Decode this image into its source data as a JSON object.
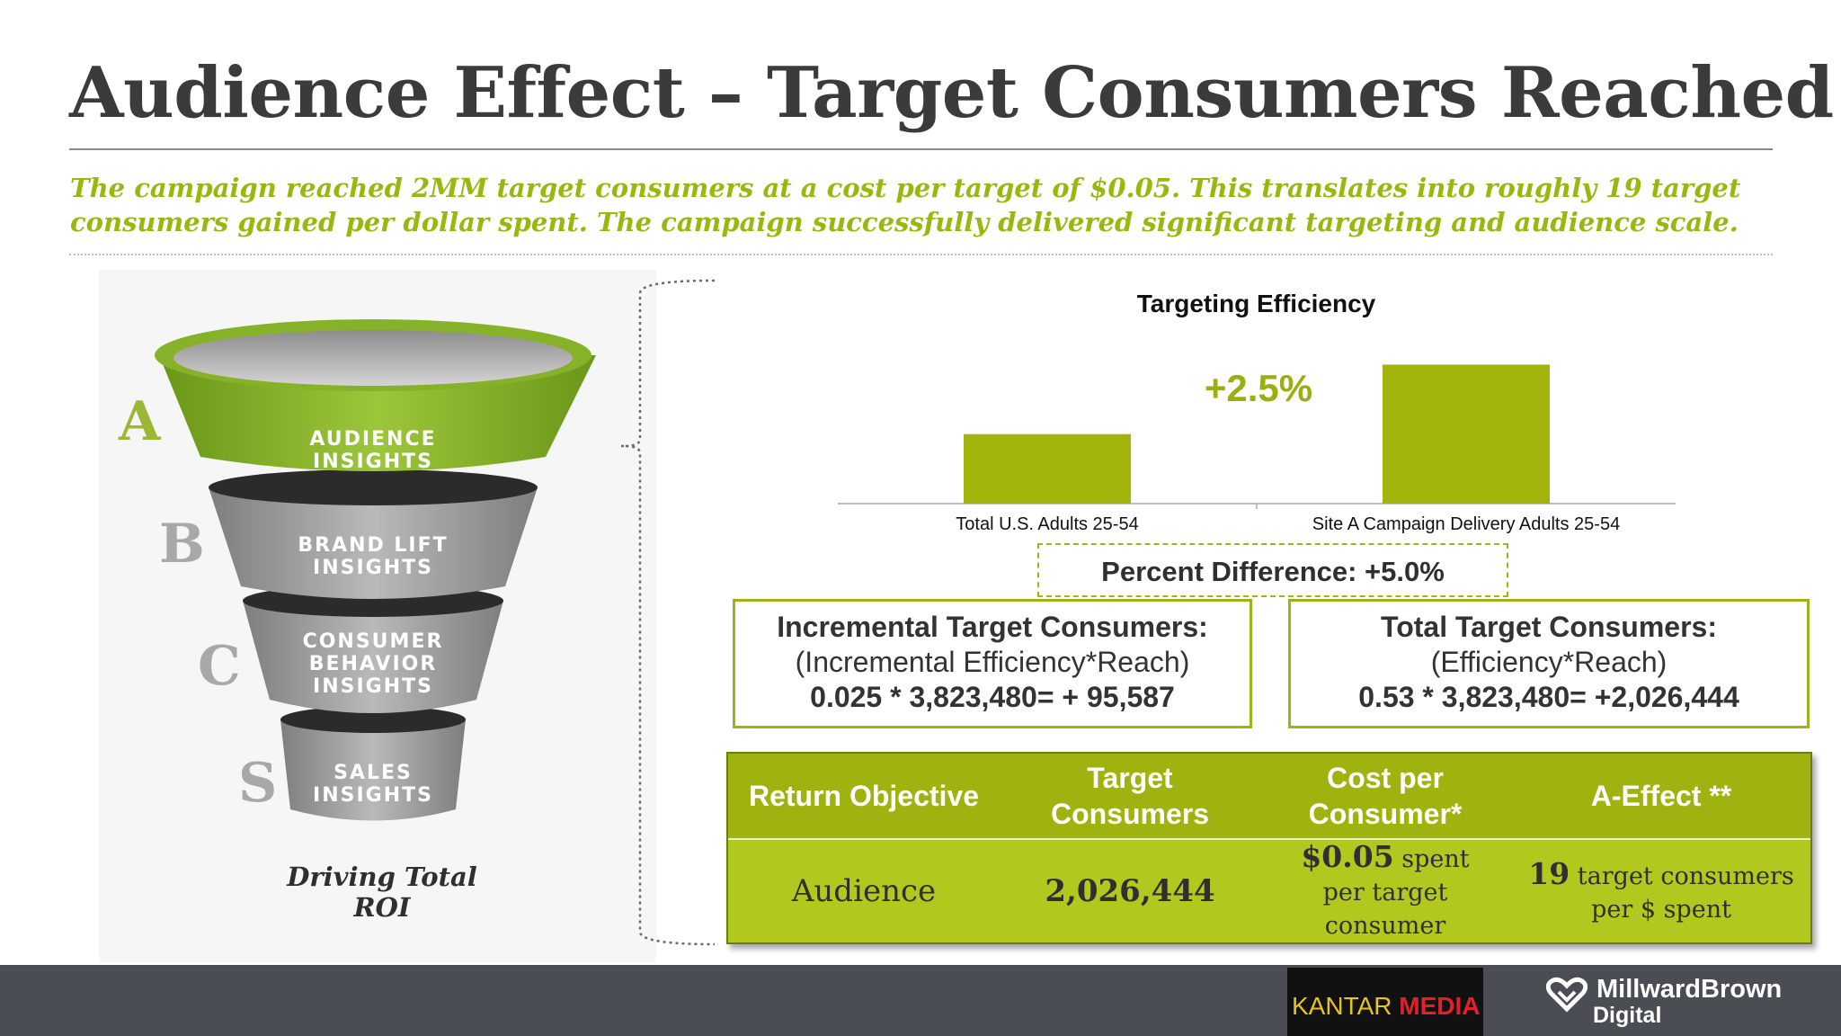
{
  "slide": {
    "title": "Audience Effect – Target Consumers Reached",
    "subtitle": "The campaign reached 2MM target consumers at a cost per target of $0.05.  This translates into roughly 19 target consumers gained per dollar spent. The campaign successfully delivered significant targeting and audience scale."
  },
  "funnel": {
    "stages": [
      {
        "letter": "A",
        "label": "AUDIENCE INSIGHTS"
      },
      {
        "letter": "B",
        "label": "BRAND LIFT\nINSIGHTS"
      },
      {
        "letter": "C",
        "label": "CONSUMER\nBEHAVIOR\nINSIGHTS"
      },
      {
        "letter": "S",
        "label": "SALES\nINSIGHTS"
      }
    ],
    "caption": "Driving Total ROI",
    "colors": {
      "active": "#8db52a",
      "inactive": "#9c9c9c"
    }
  },
  "chart_data": {
    "type": "bar",
    "title": "Targeting Efficiency",
    "categories": [
      "Total U.S. Adults 25-54",
      "Site A Campaign Delivery Adults 25-54"
    ],
    "values": [
      0.505,
      0.53
    ],
    "ylim": [
      0.48,
      0.535
    ],
    "annotation": "+2.5%",
    "bar_color": "#a2b40b",
    "grid": false,
    "xlabel": "",
    "ylabel": ""
  },
  "percent_difference": "Percent Difference: +5.0%",
  "calc_boxes": [
    {
      "heading": "Incremental Target Consumers:",
      "formula": "(Incremental Efficiency*Reach)",
      "result": "0.025 * 3,823,480= + 95,587"
    },
    {
      "heading": "Total Target Consumers:",
      "formula": "(Efficiency*Reach)",
      "result": "0.53 * 3,823,480= +2,026,444"
    }
  ],
  "table": {
    "headers": [
      "Return Objective",
      "Target\nConsumers",
      "Cost per\nConsumer*",
      "A-Effect **"
    ],
    "row": {
      "objective": "Audience",
      "target_consumers": "2,026,444",
      "cost_value": "$0.05",
      "cost_suffix": " spent",
      "cost_line2": "per target consumer",
      "effect_value": "19",
      "effect_suffix": " target consumers",
      "effect_line2": "per $ spent"
    },
    "colors": {
      "header": "#9fb210",
      "body": "#b3c81e"
    }
  },
  "footer": {
    "kantar_word": "KANTAR",
    "kantar_media": "MEDIA",
    "mb_brand": "MillwardBrown",
    "mb_sub": "Digital",
    "bg": "#4b4d55"
  }
}
